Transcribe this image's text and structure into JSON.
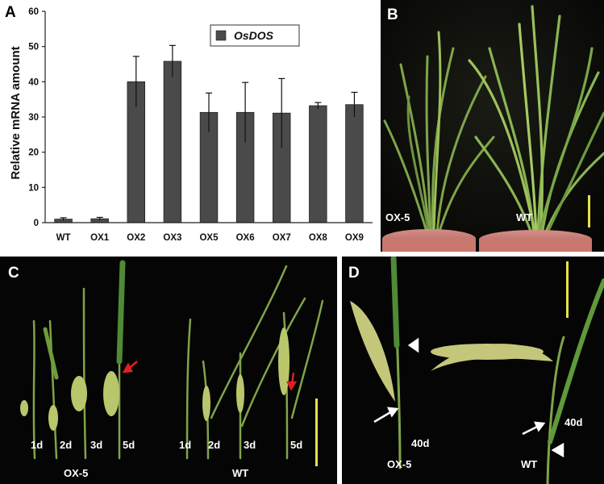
{
  "panels": {
    "A": {
      "letter": "A",
      "chart_data": {
        "type": "bar",
        "categories": [
          "WT",
          "OX1",
          "OX2",
          "OX3",
          "OX5",
          "OX6",
          "OX7",
          "OX8",
          "OX9"
        ],
        "series": [
          {
            "name": "OsDOS",
            "values": [
              1.0,
              1.1,
              40.0,
              45.8,
              31.3,
              31.3,
              31.1,
              33.2,
              33.5
            ],
            "errors": [
              0.4,
              0.4,
              7.2,
              4.5,
              5.5,
              8.5,
              9.8,
              0.9,
              3.5
            ]
          }
        ],
        "xlabel": "",
        "ylabel": "Relative mRNA amount",
        "ylim": [
          0,
          60
        ],
        "yticks": [
          "0",
          "10",
          "20",
          "30",
          "40",
          "50",
          "60"
        ],
        "legend_position": "top-center",
        "bar_color": "#4a4a4a",
        "grid": false
      }
    },
    "B": {
      "letter": "B",
      "labels": {
        "left": "OX-5",
        "right": "WT"
      }
    },
    "C": {
      "letter": "C",
      "day_labels": [
        "1d",
        "2d",
        "3d",
        "5d",
        "1d",
        "2d",
        "3d",
        "5d"
      ],
      "group_labels": {
        "left": "OX-5",
        "right": "WT"
      }
    },
    "D": {
      "letter": "D",
      "day_labels": {
        "left": "40d",
        "right": "40d"
      },
      "group_labels": {
        "left": "OX-5",
        "right": "WT"
      }
    }
  },
  "colors": {
    "scale_bar": "#e6e24a",
    "arrow_red": "#e02020",
    "bar": "#4a4a4a"
  }
}
